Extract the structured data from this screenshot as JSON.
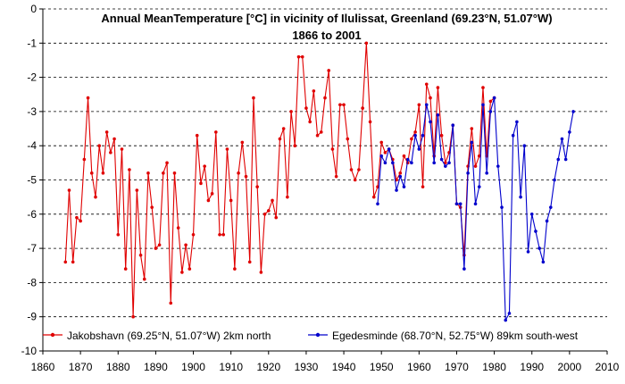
{
  "chart_data": {
    "type": "line",
    "title_line1": "Annual MeanTemperature [°C] in vicinity of Ilulissat, Greenland (69.23°N, 51.07°W)",
    "title_line2": "1866 to 2001",
    "xlim": [
      1860,
      2010
    ],
    "ylim": [
      -10,
      0
    ],
    "x_ticks": [
      1860,
      1870,
      1880,
      1890,
      1900,
      1910,
      1920,
      1930,
      1940,
      1950,
      1960,
      1970,
      1980,
      1990,
      2000,
      2010
    ],
    "y_ticks": [
      0,
      -1,
      -2,
      -3,
      -4,
      -5,
      -6,
      -7,
      -8,
      -9,
      -10
    ],
    "grid": "horizontal dashed",
    "legend_position": "bottom",
    "series": [
      {
        "name": "Jakobshavn (69.25°N, 51.07°W) 2km north",
        "color": "#e00000",
        "x": [
          1866,
          1867,
          1868,
          1869,
          1870,
          1871,
          1872,
          1873,
          1874,
          1875,
          1876,
          1877,
          1878,
          1879,
          1880,
          1881,
          1882,
          1883,
          1884,
          1885,
          1886,
          1887,
          1888,
          1889,
          1890,
          1891,
          1892,
          1893,
          1894,
          1895,
          1896,
          1897,
          1898,
          1899,
          1900,
          1901,
          1902,
          1903,
          1904,
          1905,
          1906,
          1907,
          1908,
          1909,
          1910,
          1911,
          1912,
          1913,
          1914,
          1915,
          1916,
          1917,
          1918,
          1919,
          1920,
          1921,
          1922,
          1923,
          1924,
          1925,
          1926,
          1927,
          1928,
          1929,
          1930,
          1931,
          1932,
          1933,
          1934,
          1935,
          1936,
          1937,
          1938,
          1939,
          1940,
          1941,
          1942,
          1943,
          1944,
          1945,
          1946,
          1947,
          1948,
          1949,
          1950,
          1951,
          1952,
          1953,
          1954,
          1955,
          1956,
          1957,
          1958,
          1959,
          1960,
          1961,
          1962,
          1963,
          1964,
          1965,
          1966,
          1967,
          1968,
          1969,
          1970,
          1971,
          1972,
          1973,
          1974,
          1975,
          1976,
          1977,
          1978,
          1979,
          1980
        ],
        "values": [
          -7.4,
          -5.3,
          -7.4,
          -6.1,
          -6.2,
          -4.4,
          -2.6,
          -4.8,
          -5.5,
          -4,
          -4.8,
          -3.6,
          -4.2,
          -3.8,
          -6.6,
          -4.1,
          -7.6,
          -4.7,
          -9,
          -5.3,
          -7.2,
          -7.9,
          -4.8,
          -5.8,
          -7,
          -6.9,
          -4.8,
          -4.5,
          -8.6,
          -4.8,
          -6.4,
          -7.7,
          -6.9,
          -7.6,
          -6.6,
          -3.7,
          -5.1,
          -4.6,
          -5.6,
          -5.4,
          -3.6,
          -6.6,
          -6.6,
          -4.1,
          -5.6,
          -7.6,
          -4.8,
          -3.9,
          -4.9,
          -7.4,
          -2.6,
          -5.2,
          -7.7,
          -6,
          -5.9,
          -5.6,
          -6.1,
          -3.8,
          -3.5,
          -5.5,
          -3,
          -4,
          -1.4,
          -1.4,
          -2.9,
          -3.3,
          -2.4,
          -3.7,
          -3.6,
          -2.6,
          -1.8,
          -4.1,
          -4.9,
          -2.8,
          -2.8,
          -3.8,
          -4.7,
          -5,
          -4.7,
          -2.9,
          -1,
          -3.3,
          -5.5,
          -5.2,
          -3.9,
          -4.2,
          -4.1,
          -4.4,
          -5,
          -4.8,
          -4.3,
          -4.5,
          -3.8,
          -3.6,
          -2.8,
          -5.2,
          -2.2,
          -2.6,
          -4.3,
          -2.3,
          -3.7,
          -4.5,
          -4.2,
          -3.4,
          -5.7,
          -5.8,
          -7.2,
          -4.6,
          -3.5,
          -4.6,
          -4.3,
          -2.3,
          -4.3,
          -2.7,
          -2.6
        ]
      },
      {
        "name": "Egedesminde (68.70°N, 52.75°W) 89km south-west",
        "color": "#0000cc",
        "x": [
          1949,
          1950,
          1951,
          1952,
          1953,
          1954,
          1955,
          1956,
          1957,
          1958,
          1959,
          1960,
          1961,
          1962,
          1963,
          1964,
          1965,
          1966,
          1967,
          1968,
          1969,
          1970,
          1971,
          1972,
          1973,
          1974,
          1975,
          1976,
          1977,
          1978,
          1979,
          1980,
          1981,
          1982,
          1983,
          1984,
          1985,
          1986,
          1987,
          1988,
          1989,
          1990,
          1991,
          1992,
          1993,
          1994,
          1995,
          1996,
          1997,
          1998,
          1999,
          2000,
          2001
        ],
        "values": [
          -5.7,
          -4.3,
          -4.5,
          -4.1,
          -4.5,
          -5.3,
          -4.9,
          -5.2,
          -4.4,
          -4.5,
          -3.7,
          -4.1,
          -3.7,
          -2.8,
          -3.3,
          -4.5,
          -3.1,
          -4.4,
          -4.6,
          -4.5,
          -3.4,
          -5.7,
          -5.7,
          -7.6,
          -4.8,
          -3.9,
          -5.7,
          -5.2,
          -2.8,
          -4.8,
          -3,
          -2.6,
          -4.6,
          -5.8,
          -9.1,
          -8.9,
          -3.7,
          -3.3,
          -5.5,
          -4,
          -7.1,
          -6,
          -6.5,
          -7,
          -7.4,
          -6.2,
          -5.8,
          -5,
          -4.4,
          -3.8,
          -4.4,
          -3.6,
          -3
        ]
      }
    ]
  }
}
